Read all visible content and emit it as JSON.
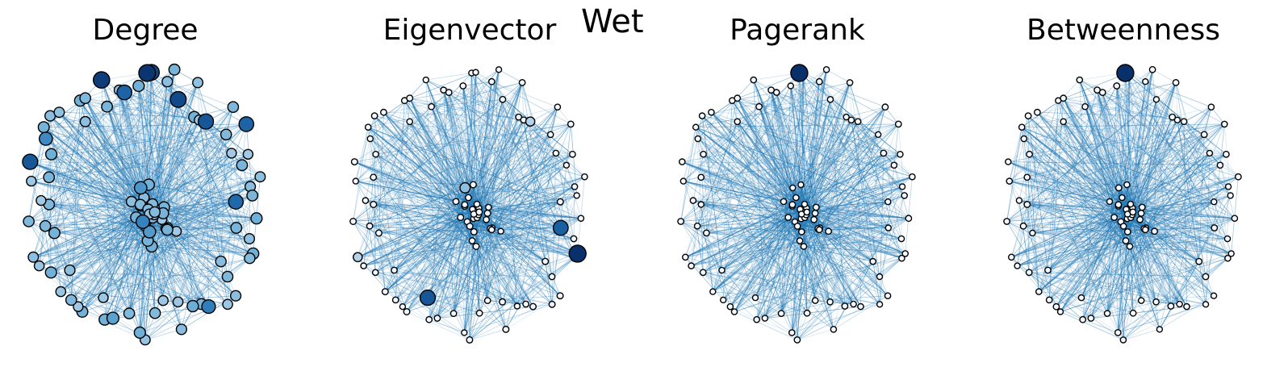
{
  "figure": {
    "suptitle": "Wet",
    "colormap": [
      "#f7fbff",
      "#c6dbef",
      "#6baed6",
      "#2171b5",
      "#08306b"
    ]
  },
  "panels": [
    {
      "title": "Degree",
      "highlights": [
        [
          52,
          0.98
        ],
        [
          48,
          0.95
        ],
        [
          53,
          0.9
        ],
        [
          56,
          0.9
        ],
        [
          38,
          0.85
        ],
        [
          60,
          0.85
        ],
        [
          50,
          0.8
        ],
        [
          63,
          0.8
        ],
        [
          0,
          0.78
        ],
        [
          10,
          0.7
        ],
        [
          70,
          0.68
        ],
        [
          40,
          0.65
        ],
        [
          90,
          0.6
        ],
        [
          95,
          0.58
        ],
        [
          20,
          0.55
        ]
      ],
      "base": [
        0.35,
        0.5
      ]
    },
    {
      "title": "Eigenvector",
      "highlights": [
        [
          4,
          1.0
        ],
        [
          22,
          0.85
        ],
        [
          2,
          0.82
        ],
        [
          90,
          0.4
        ],
        [
          60,
          0.3
        ],
        [
          30,
          0.3
        ]
      ],
      "base": [
        0.0,
        0.05
      ]
    },
    {
      "title": "Pagerank",
      "highlights": [
        [
          52,
          1.0
        ]
      ],
      "base": [
        0.0,
        0.03
      ]
    },
    {
      "title": "Betweenness",
      "highlights": [
        [
          52,
          1.0
        ]
      ],
      "base": [
        0.0,
        0.03
      ]
    }
  ]
}
